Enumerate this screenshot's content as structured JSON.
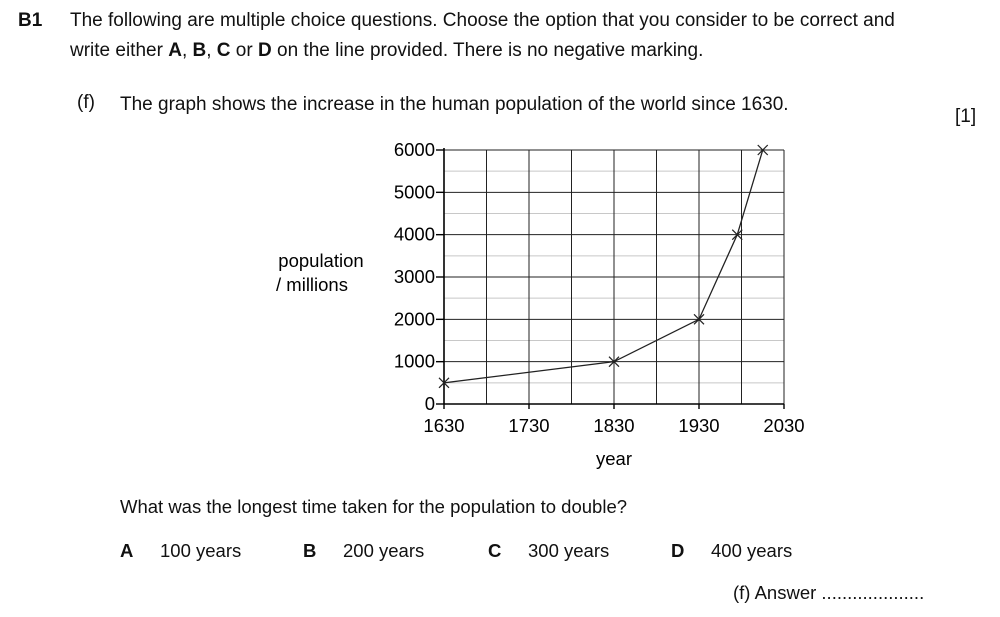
{
  "question_number": "B1",
  "instructions": {
    "line1": "The following are multiple choice questions.  Choose the option that you consider to be correct and",
    "line2": {
      "pre": "write either ",
      "a": "A",
      "sep1": ", ",
      "b": "B",
      "sep2": ", ",
      "c": "C",
      "sep3": " or ",
      "d": "D",
      "post": " on the line provided.  There is no negative marking."
    }
  },
  "part": {
    "label": "(f)",
    "text": "The graph shows the increase in the human population of the world since 1630.",
    "marks": "[1]"
  },
  "chart_data": {
    "type": "line",
    "x": [
      1630,
      1830,
      1930,
      1975,
      2005
    ],
    "y": [
      500,
      1000,
      2000,
      4000,
      6000
    ],
    "xlim": [
      1630,
      2030
    ],
    "ylim": [
      0,
      6000
    ],
    "x_ticks": [
      "1630",
      "1730",
      "1830",
      "1930",
      "2030"
    ],
    "y_ticks": [
      "0",
      "1000",
      "2000",
      "3000",
      "4000",
      "5000",
      "6000"
    ],
    "xlabel": "year",
    "ylabel_line1": "population",
    "ylabel_line2": "/ millions",
    "grid": true,
    "marker": "x"
  },
  "question": "What was the longest time taken for the population to double?",
  "options": [
    {
      "letter": "A",
      "text": "100 years"
    },
    {
      "letter": "B",
      "text": "200 years"
    },
    {
      "letter": "C",
      "text": "300 years"
    },
    {
      "letter": "D",
      "text": "400 years"
    }
  ],
  "answer_line": "(f) Answer ...................."
}
